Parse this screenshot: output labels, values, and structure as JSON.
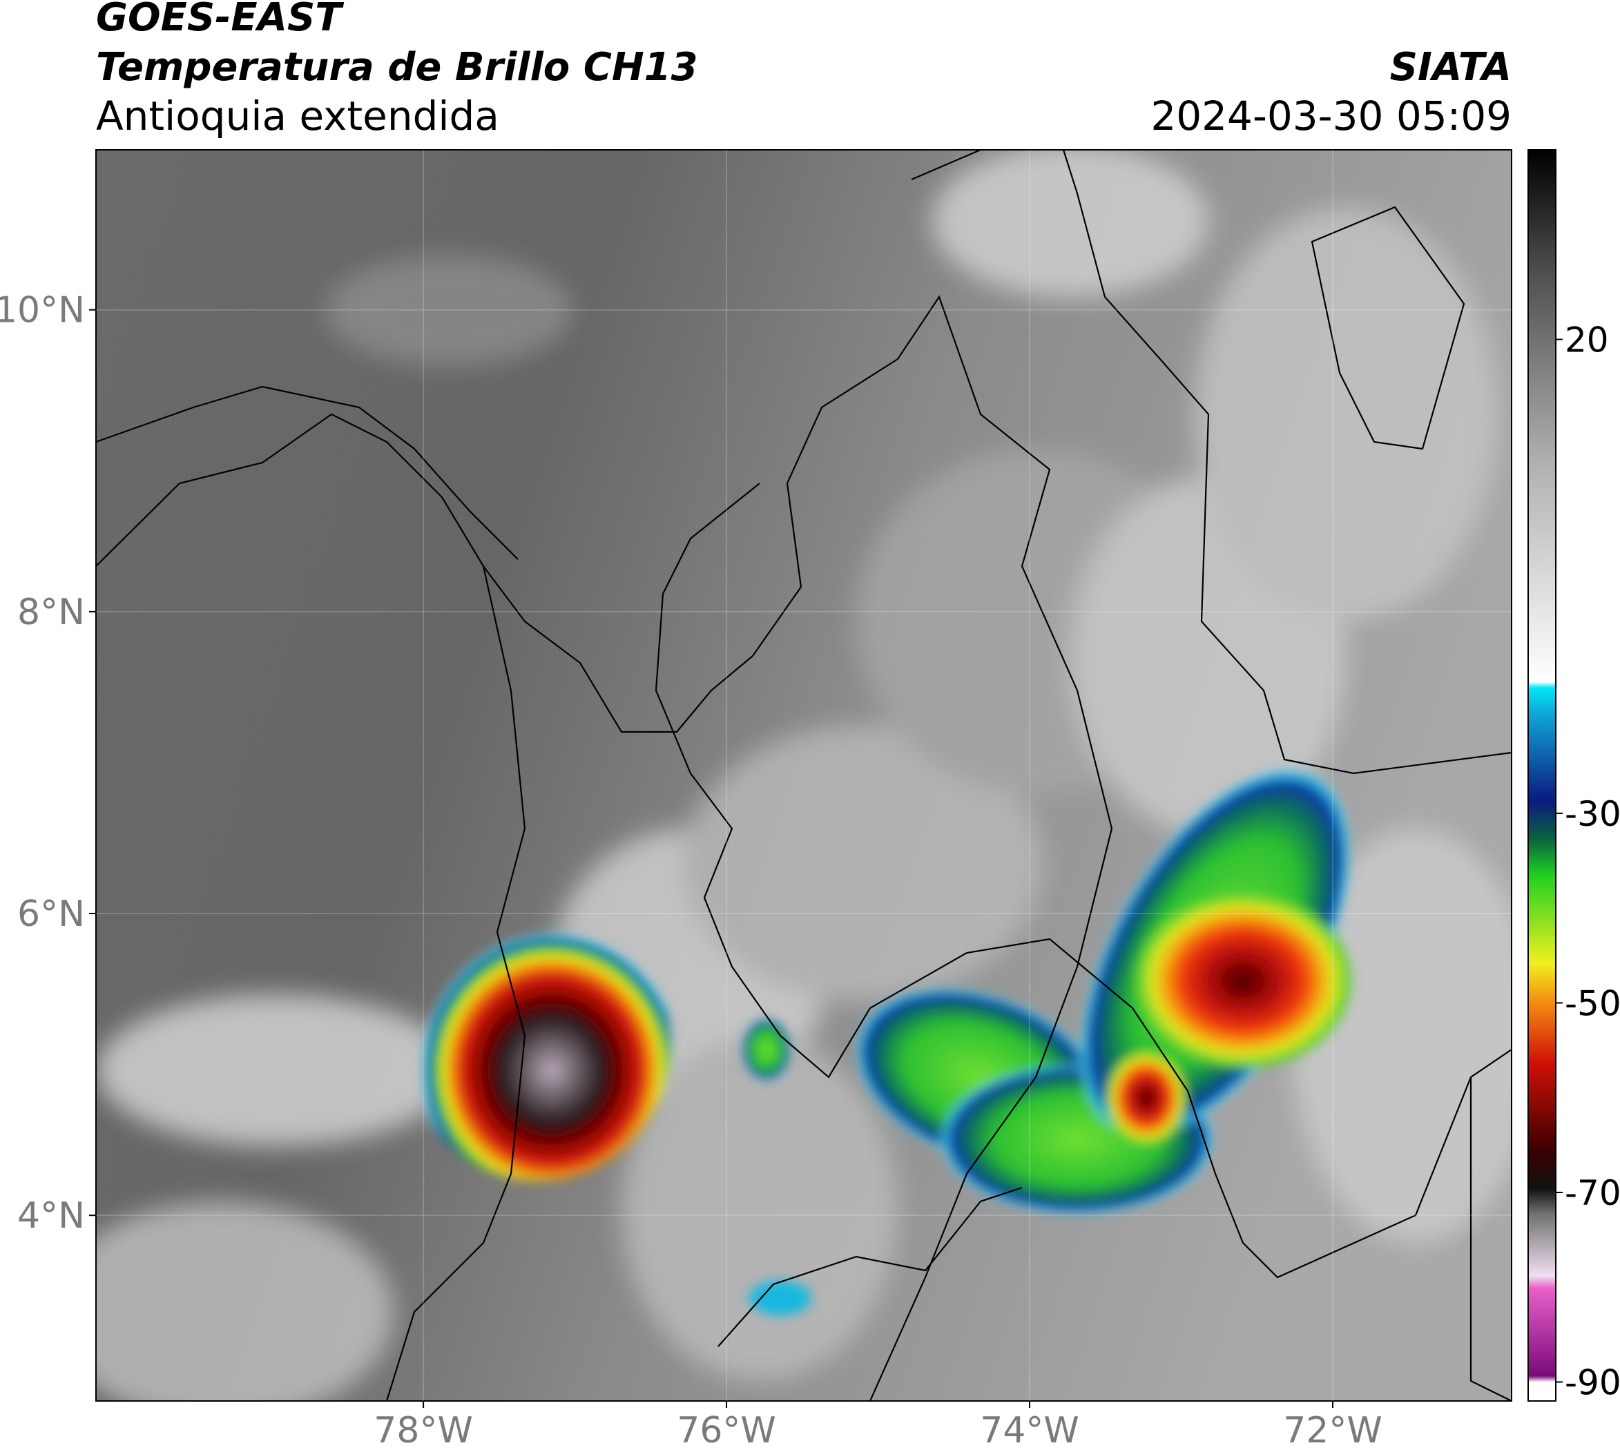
{
  "header": {
    "title": "GOES-EAST",
    "subtitle": "Temperatura de Brillo CH13",
    "region": "Antioquia extendida",
    "source": "SIATA",
    "datetime": "2024-03-30 05:09"
  },
  "chart_data": {
    "type": "map",
    "xlim": [
      -80.16,
      -70.82
    ],
    "ylim": [
      2.77,
      11.06
    ],
    "xticks": [
      {
        "value": -78,
        "label": "78°W"
      },
      {
        "value": -76,
        "label": "76°W"
      },
      {
        "value": -74,
        "label": "74°W"
      },
      {
        "value": -72,
        "label": "72°W"
      }
    ],
    "yticks": [
      {
        "value": 10,
        "label": "10°N"
      },
      {
        "value": 8,
        "label": "8°N"
      },
      {
        "value": 6,
        "label": "6°N"
      },
      {
        "value": 4,
        "label": "4°N"
      }
    ],
    "grid": true,
    "colorbar": {
      "lim": [
        -92,
        40
      ],
      "ticks": [
        20,
        -30,
        -50,
        -70,
        -90
      ]
    }
  }
}
